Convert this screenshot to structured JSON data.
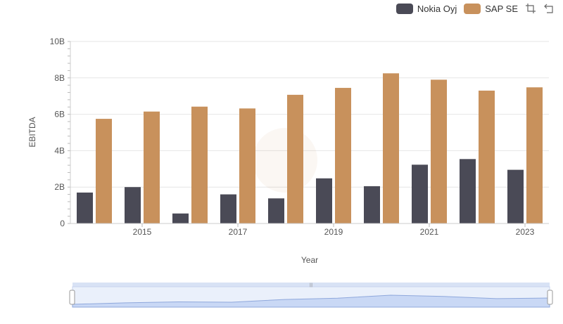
{
  "legend": {
    "items": [
      {
        "label": "Nokia Oyj",
        "color": "#4a4a56"
      },
      {
        "label": "SAP SE",
        "color": "#c8915c"
      }
    ],
    "tools": [
      "zoom-select-icon",
      "zoom-reset-icon"
    ]
  },
  "chart_data": {
    "type": "bar",
    "xlabel": "Year",
    "ylabel": "EBITDA",
    "x": [
      2014,
      2015,
      2016,
      2017,
      2018,
      2019,
      2020,
      2021,
      2022,
      2023
    ],
    "x_tick_labels": [
      "2015",
      "2017",
      "2019",
      "2021",
      "2023"
    ],
    "y_tick_labels": [
      "0",
      "2B",
      "4B",
      "6B",
      "8B",
      "10B"
    ],
    "ylim": [
      0,
      10000000000
    ],
    "grid": true,
    "legend_position": "top-right",
    "series": [
      {
        "name": "Nokia Oyj",
        "color": "#4a4a56",
        "values": [
          1700000000,
          2000000000,
          550000000,
          1600000000,
          1380000000,
          2480000000,
          2050000000,
          3230000000,
          3540000000,
          2950000000
        ]
      },
      {
        "name": "SAP SE",
        "color": "#c8915c",
        "values": [
          5750000000,
          6150000000,
          6420000000,
          6320000000,
          7070000000,
          7450000000,
          8250000000,
          7900000000,
          7300000000,
          7480000000
        ]
      }
    ]
  }
}
